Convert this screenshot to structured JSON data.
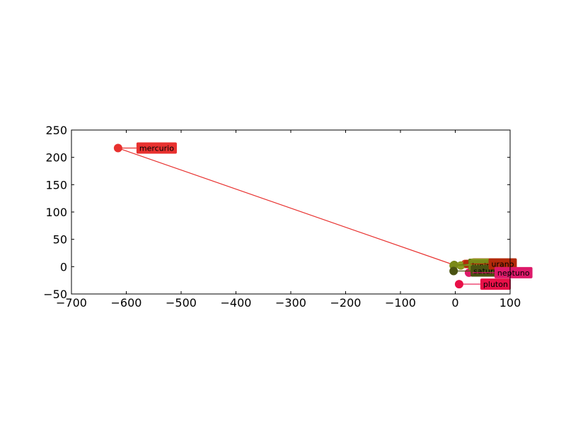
{
  "chart_data": {
    "type": "scatter",
    "title": "",
    "xlabel": "",
    "ylabel": "",
    "xlim": [
      -700,
      100
    ],
    "ylim": [
      -50,
      250
    ],
    "xticks": [
      -700,
      -600,
      -500,
      -400,
      -300,
      -200,
      -100,
      0,
      100
    ],
    "yticks": [
      -50,
      0,
      50,
      100,
      150,
      200,
      250
    ],
    "grid": false,
    "points": [
      {
        "label": "mercurio",
        "x": -615,
        "y": 217,
        "color": "#e8312f",
        "label_dx": 26,
        "label_dy": 0
      },
      {
        "label": "venus",
        "x": 18,
        "y": 5,
        "color": "#d33a1a",
        "label_dx": 10,
        "label_dy": 0
      },
      {
        "label": "tierra",
        "x": -2,
        "y": 3,
        "color": "#6b7a10",
        "label_dx": 20,
        "label_dy": -1
      },
      {
        "label": "marte",
        "x": 10,
        "y": 2,
        "color": "#8a9a22",
        "label_dx": 14,
        "label_dy": -2
      },
      {
        "label": "jupiter",
        "x": -3,
        "y": 2,
        "color": "#7a8a18",
        "label_dx": 22,
        "label_dy": 0
      },
      {
        "label": "saturno",
        "x": -3,
        "y": -8,
        "color": "#4a5212",
        "label_dx": 24,
        "label_dy": 0
      },
      {
        "label": "urano",
        "x": 22,
        "y": 5,
        "color": "#b22a0a",
        "label_dx": 30,
        "label_dy": 0
      },
      {
        "label": "neptuno",
        "x": 25,
        "y": -11,
        "color": "#dd1a6a",
        "label_dx": 36,
        "label_dy": 0
      },
      {
        "label": "pluton",
        "x": 7,
        "y": -32,
        "color": "#e81048",
        "label_dx": 30,
        "label_dy": 0
      }
    ],
    "path": {
      "color": "#e8312f",
      "order": [
        "mercurio",
        "tierra",
        "jupiter",
        "venus"
      ]
    }
  }
}
